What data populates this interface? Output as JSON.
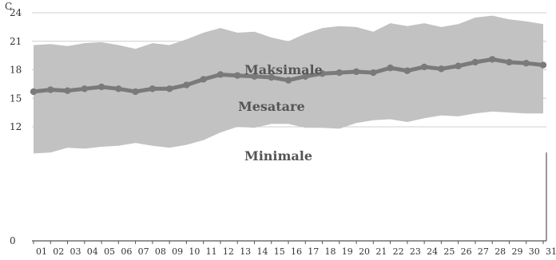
{
  "chart_data": {
    "type": "area",
    "unit_label": "C",
    "categories": [
      "01",
      "02",
      "03",
      "04",
      "05",
      "06",
      "07",
      "08",
      "09",
      "10",
      "11",
      "12",
      "13",
      "14",
      "15",
      "16",
      "17",
      "18",
      "19",
      "20",
      "21",
      "22",
      "23",
      "24",
      "25",
      "26",
      "27",
      "28",
      "29",
      "30",
      "31"
    ],
    "ylim": [
      0,
      24
    ],
    "yticks": [
      0,
      12,
      15,
      18,
      21,
      24
    ],
    "grid": true,
    "series": [
      {
        "name": "Maksimale",
        "values": [
          20.6,
          20.7,
          20.5,
          20.8,
          20.9,
          20.6,
          20.2,
          20.8,
          20.6,
          21.2,
          21.9,
          22.4,
          21.9,
          22.0,
          21.4,
          21.0,
          21.8,
          22.4,
          22.6,
          22.5,
          22.0,
          22.9,
          22.6,
          22.9,
          22.5,
          22.8,
          23.5,
          23.7,
          23.3,
          23.1,
          22.8
        ]
      },
      {
        "name": "Mesatare",
        "values": [
          15.7,
          15.9,
          15.8,
          16.0,
          16.2,
          16.0,
          15.7,
          16.0,
          16.0,
          16.4,
          17.0,
          17.5,
          17.4,
          17.3,
          17.2,
          16.9,
          17.3,
          17.6,
          17.7,
          17.8,
          17.7,
          18.2,
          17.9,
          18.3,
          18.1,
          18.4,
          18.8,
          19.1,
          18.8,
          18.7,
          18.5
        ]
      },
      {
        "name": "Minimale",
        "values": [
          9.2,
          9.3,
          9.8,
          9.7,
          9.9,
          10.0,
          10.3,
          10.0,
          9.8,
          10.1,
          10.6,
          11.4,
          12.0,
          11.9,
          12.3,
          12.3,
          11.9,
          11.9,
          11.8,
          12.4,
          12.7,
          12.8,
          12.5,
          12.9,
          13.2,
          13.1,
          13.4,
          13.6,
          13.5,
          13.4,
          13.4
        ]
      }
    ],
    "annotations": [
      "Maksimale",
      "Mesatare",
      "Minimale"
    ],
    "colors": {
      "band": "#c2c2c2",
      "line": "#7a7a7a",
      "grid": "#cfcfcf",
      "axis": "#555555"
    }
  }
}
